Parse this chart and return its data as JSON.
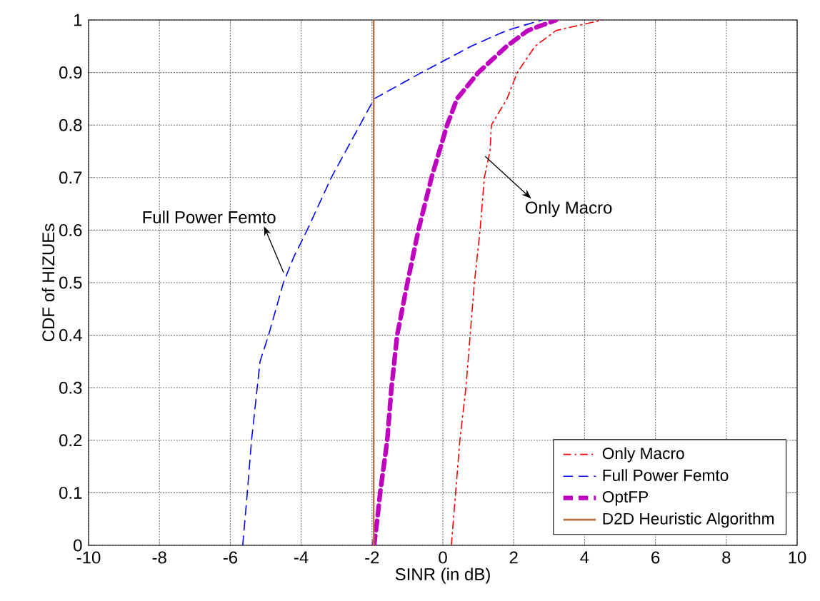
{
  "chart_data": {
    "type": "line",
    "xlabel": "SINR (in dB)",
    "ylabel": "CDF of HIZUEs",
    "xlim": [
      -10,
      10
    ],
    "ylim": [
      0,
      1
    ],
    "xticks": [
      -10,
      -8,
      -6,
      -4,
      -2,
      0,
      2,
      4,
      6,
      8,
      10
    ],
    "yticks": [
      0,
      0.1,
      0.2,
      0.3,
      0.4,
      0.5,
      0.6,
      0.7,
      0.8,
      0.9,
      1
    ],
    "grid": true,
    "legend": "bottom right",
    "series": [
      {
        "name": "Only Macro",
        "color": "#ff0000",
        "line_style": "dashdot",
        "x": [
          0.24,
          0.36,
          0.48,
          0.65,
          0.77,
          0.89,
          1.05,
          1.17,
          1.33,
          1.37,
          1.81,
          2.1,
          2.6,
          3.2,
          4.5
        ],
        "values": [
          0,
          0.1,
          0.2,
          0.3,
          0.4,
          0.5,
          0.6,
          0.7,
          0.75,
          0.8,
          0.85,
          0.9,
          0.95,
          0.98,
          1
        ]
      },
      {
        "name": "Full Power Femto",
        "color": "#0000ff",
        "line_style": "dashed",
        "x": [
          -5.65,
          -5.52,
          -5.4,
          -5.24,
          -5.16,
          -4.92,
          -4.5,
          -4.2,
          -3.83,
          -3.15,
          -2.34,
          -1.94,
          -0.6,
          0.8,
          1.8,
          2.8
        ],
        "values": [
          0,
          0.1,
          0.2,
          0.3,
          0.35,
          0.4,
          0.5,
          0.55,
          0.6,
          0.7,
          0.8,
          0.85,
          0.9,
          0.95,
          0.98,
          1
        ]
      },
      {
        "name": "OptFP",
        "color": "#bf00bf",
        "line_style": "dashed",
        "x": [
          -1.94,
          -1.85,
          -1.77,
          -1.57,
          -1.45,
          -1.29,
          -1.0,
          -0.69,
          -0.32,
          0.12,
          0.4,
          1.0,
          1.8,
          2.4,
          3.2
        ],
        "values": [
          0,
          0.05,
          0.1,
          0.2,
          0.3,
          0.4,
          0.5,
          0.6,
          0.7,
          0.8,
          0.85,
          0.9,
          0.95,
          0.98,
          1
        ]
      },
      {
        "name": "D2D Heuristic Algorithm",
        "color": "#b5714a",
        "line_style": "solid",
        "x": [
          -1.95,
          -1.95
        ],
        "values": [
          0,
          1
        ]
      }
    ],
    "annotations": [
      {
        "text": "Full Power Femto",
        "x": -4.5,
        "y": 0.52
      },
      {
        "text": "Only Macro",
        "x": 1.2,
        "y": 0.74
      }
    ]
  }
}
